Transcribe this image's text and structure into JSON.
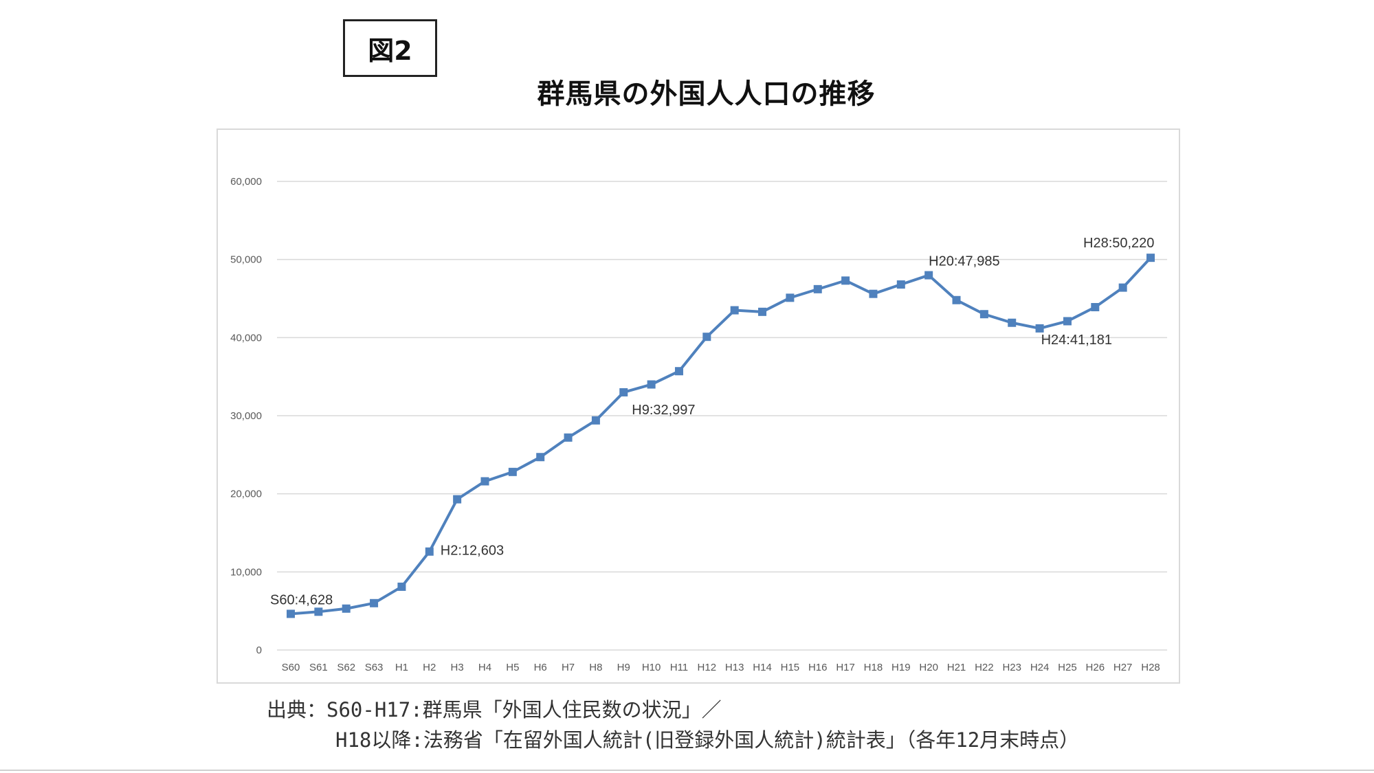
{
  "figure_label": "図2",
  "title": "群馬県の外国人人口の推移",
  "source": {
    "line1": "出典：S60-H17:群馬県「外国人住民数の状況」／",
    "line2": "H18以降:法務省「在留外国人統計(旧登録外国人統計)統計表」（各年12月末時点）"
  },
  "chart_data": {
    "type": "line",
    "title": "群馬県の外国人人口の推移",
    "xlabel": "",
    "ylabel": "",
    "ylim": [
      0,
      60000
    ],
    "y_ticks": [
      "0",
      "10,000",
      "20,000",
      "30,000",
      "40,000",
      "50,000",
      "60,000"
    ],
    "grid": true,
    "legend": "none",
    "color": "#4f81bd",
    "categories": [
      "S60",
      "S61",
      "S62",
      "S63",
      "H1",
      "H2",
      "H3",
      "H4",
      "H5",
      "H6",
      "H7",
      "H8",
      "H9",
      "H10",
      "H11",
      "H12",
      "H13",
      "H14",
      "H15",
      "H16",
      "H17",
      "H18",
      "H19",
      "H20",
      "H21",
      "H22",
      "H23",
      "H24",
      "H25",
      "H26",
      "H27",
      "H28"
    ],
    "series": [
      {
        "values": [
          4628,
          4900,
          5300,
          6000,
          8100,
          12603,
          19300,
          21600,
          22800,
          24700,
          27200,
          29400,
          32997,
          34000,
          35700,
          40100,
          43500,
          43300,
          45100,
          46200,
          47300,
          45600,
          46800,
          47985,
          44800,
          43000,
          41900,
          41181,
          42100,
          43900,
          46400,
          50220
        ]
      }
    ],
    "annotations": [
      {
        "index": 0,
        "text": "S60:4,628"
      },
      {
        "index": 5,
        "text": "H2:12,603"
      },
      {
        "index": 12,
        "text": "H9:32,997"
      },
      {
        "index": 23,
        "text": "H20:47,985"
      },
      {
        "index": 27,
        "text": "H24:41,181"
      },
      {
        "index": 31,
        "text": "H28:50,220"
      }
    ]
  }
}
